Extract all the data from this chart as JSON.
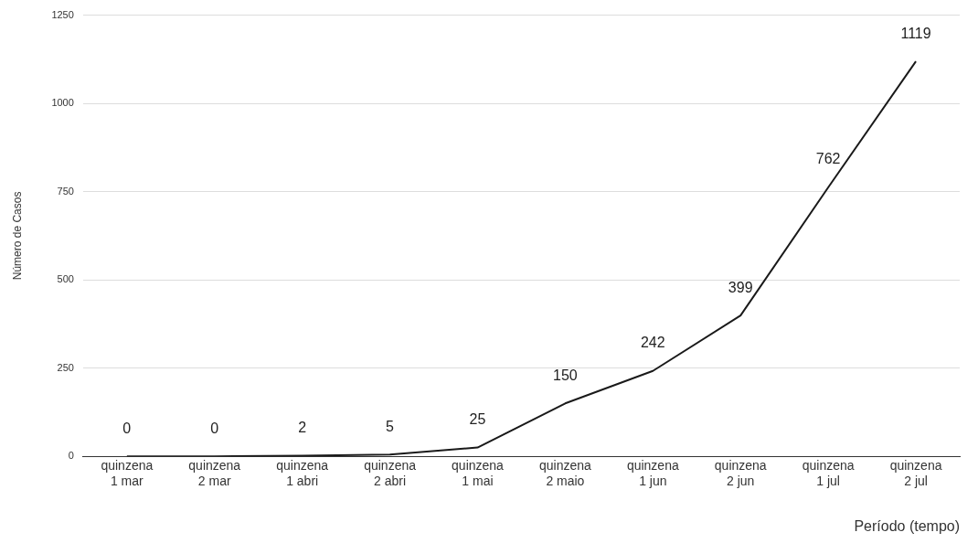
{
  "chart_data": {
    "type": "line",
    "xlabel": "Período (tempo)",
    "ylabel": "Número de Casos",
    "categories": [
      "quinzena 1 mar",
      "quinzena 2 mar",
      "quinzena 1 abri",
      "quinzena 2 abri",
      "quinzena 1 mai",
      "quinzena 2 maio",
      "quinzena 1 jun",
      "quinzena 2 jun",
      "quinzena 1 jul",
      "quinzena 2 jul"
    ],
    "series": [
      {
        "color": "#1a1a1a",
        "values": [
          0,
          0,
          2,
          5,
          25,
          150,
          242,
          399,
          762,
          1119
        ]
      }
    ],
    "ylim": [
      0,
      1250
    ],
    "yticks": [
      0,
      250,
      500,
      750,
      1000,
      1250
    ],
    "grid": "y",
    "data_labels": true,
    "legend": false,
    "marker": "none",
    "line_style": "solid"
  }
}
